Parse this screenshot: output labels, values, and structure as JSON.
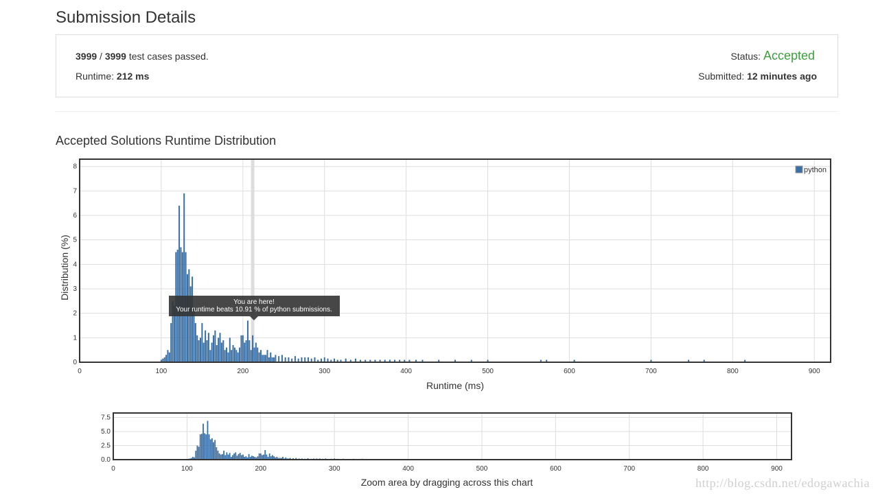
{
  "header": {
    "title": "Submission Details"
  },
  "summary": {
    "passed": "3999",
    "separator": " / ",
    "total": "3999",
    "passed_suffix": " test cases passed.",
    "runtime_label": "Runtime: ",
    "runtime_value": "212 ms",
    "status_label": "Status: ",
    "status_value": "Accepted",
    "submitted_label": "Submitted: ",
    "submitted_value": "12 minutes ago"
  },
  "section": {
    "title": "Accepted Solutions Runtime Distribution"
  },
  "tooltip": {
    "line1": "You are here!",
    "line2": "Your runtime beats 10.91 % of python submissions."
  },
  "watermark": "http://blog.csdn.net/edogawachia",
  "colors": {
    "bar": "#3a6fa5",
    "accepted": "#3c9e3c",
    "marker": "#dddddd",
    "tooltip_bg": "#333333"
  },
  "chart_data": [
    {
      "type": "bar",
      "xlabel": "Runtime (ms)",
      "ylabel": "Distribution (%)",
      "xlim": [
        0,
        920
      ],
      "ylim": [
        0,
        8.3
      ],
      "xticks": [
        "0",
        "100",
        "200",
        "300",
        "400",
        "500",
        "600",
        "700",
        "800",
        "900"
      ],
      "yticks": [
        "0",
        "1",
        "2",
        "3",
        "4",
        "5",
        "6",
        "7",
        "8"
      ],
      "grid": true,
      "legend": {
        "position": "top-right",
        "entries": [
          "python"
        ]
      },
      "marker_x": 212,
      "series": [
        {
          "name": "python",
          "x": [
            100,
            102,
            104,
            106,
            108,
            110,
            112,
            114,
            116,
            118,
            120,
            122,
            124,
            126,
            128,
            130,
            132,
            134,
            136,
            138,
            140,
            142,
            144,
            146,
            148,
            150,
            152,
            154,
            156,
            158,
            160,
            162,
            164,
            166,
            168,
            170,
            172,
            174,
            176,
            178,
            180,
            182,
            184,
            186,
            188,
            190,
            192,
            194,
            196,
            198,
            200,
            202,
            204,
            206,
            208,
            210,
            212,
            214,
            216,
            218,
            220,
            222,
            224,
            226,
            228,
            230,
            232,
            234,
            236,
            238,
            240,
            244,
            248,
            252,
            256,
            260,
            264,
            268,
            272,
            276,
            280,
            284,
            288,
            292,
            296,
            300,
            304,
            308,
            312,
            316,
            320,
            326,
            332,
            338,
            344,
            350,
            356,
            362,
            368,
            374,
            380,
            386,
            392,
            398,
            404,
            412,
            420,
            440,
            460,
            480,
            500,
            565,
            572,
            606,
            700,
            746,
            765,
            815,
            920
          ],
          "values": [
            0.1,
            0.15,
            0.2,
            0.3,
            0.5,
            0.4,
            1.6,
            2.5,
            2.3,
            4.5,
            4.6,
            6.4,
            4.7,
            4.5,
            6.9,
            4.5,
            3.6,
            3.8,
            3.1,
            3.5,
            2.2,
            1.6,
            1.1,
            0.9,
            1.0,
            1.6,
            0.8,
            1.3,
            0.9,
            1.2,
            0.5,
            0.8,
            1.1,
            1.3,
            0.7,
            1.0,
            1.2,
            0.8,
            0.9,
            0.5,
            0.6,
            0.4,
            1.0,
            0.5,
            0.7,
            0.6,
            0.5,
            0.4,
            0.6,
            1.1,
            1.1,
            0.8,
            0.9,
            1.7,
            0.9,
            0.5,
            1.1,
            0.6,
            0.8,
            0.6,
            0.4,
            0.5,
            0.3,
            0.3,
            0.3,
            0.5,
            0.2,
            0.4,
            0.2,
            0.2,
            0.3,
            0.25,
            0.3,
            0.2,
            0.2,
            0.15,
            0.25,
            0.15,
            0.2,
            0.2,
            0.2,
            0.15,
            0.2,
            0.1,
            0.15,
            0.2,
            0.15,
            0.1,
            0.15,
            0.1,
            0.1,
            0.15,
            0.1,
            0.15,
            0.1,
            0.1,
            0.1,
            0.1,
            0.1,
            0.1,
            0.1,
            0.1,
            0.1,
            0.1,
            0.1,
            0.1,
            0.1,
            0.1,
            0.1,
            0.1,
            0.1,
            0.1,
            0.1,
            0.1,
            0.1,
            0.1,
            0.1,
            0.1,
            0.1
          ]
        }
      ]
    },
    {
      "type": "bar",
      "xlabel": "Zoom area by dragging across this chart",
      "xlim": [
        0,
        920
      ],
      "ylim": [
        0,
        8.3
      ],
      "xticks": [
        "0",
        "100",
        "200",
        "300",
        "400",
        "500",
        "600",
        "700",
        "800",
        "900"
      ],
      "yticks": [
        "0.0",
        "2.5",
        "5.0",
        "7.5"
      ],
      "grid": true
    }
  ]
}
